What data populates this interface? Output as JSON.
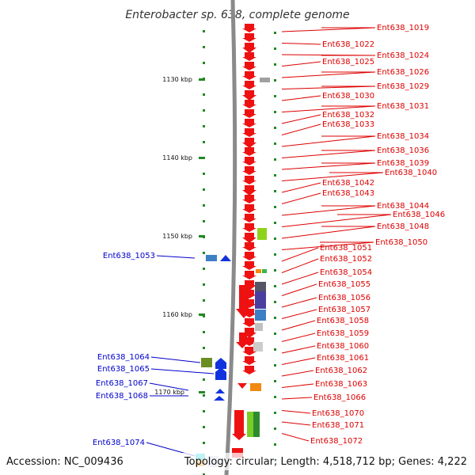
{
  "title": "Enterobacter sp. 638, complete genome",
  "footer": {
    "accession": "Accession: NC_009436",
    "topology": "Topology: circular; Length: 4,518,712 bp; Genes: 4,222"
  },
  "colors": {
    "forward_label": "#dd0000",
    "reverse_label": "#0000cc",
    "forward_gene": "#ee1111",
    "reverse_gene": "#1133dd",
    "backbone": "#888888",
    "tick": "#228822"
  },
  "ticks": [
    {
      "label": "1130 kbp",
      "pos": 1130
    },
    {
      "label": "1140 kbp",
      "pos": 1140
    },
    {
      "label": "1150 kbp",
      "pos": 1150
    },
    {
      "label": "1160 kbp",
      "pos": 1160
    },
    {
      "label": "1170 kbp",
      "pos": 1170
    }
  ],
  "forward_labels": [
    "Ent638_1019",
    "Ent638_1022",
    "Ent638_1024",
    "Ent638_1025",
    "Ent638_1026",
    "Ent638_1029",
    "Ent638_1030",
    "Ent638_1031",
    "Ent638_1032",
    "Ent638_1033",
    "Ent638_1034",
    "Ent638_1036",
    "Ent638_1039",
    "Ent638_1040",
    "Ent638_1042",
    "Ent638_1043",
    "Ent638_1044",
    "Ent638_1046",
    "Ent638_1048",
    "Ent638_1050",
    "Ent638_1051",
    "Ent638_1052",
    "Ent638_1054",
    "Ent638_1055",
    "Ent638_1056",
    "Ent638_1057",
    "Ent638_1058",
    "Ent638_1059",
    "Ent638_1060",
    "Ent638_1061",
    "Ent638_1062",
    "Ent638_1063",
    "Ent638_1066",
    "Ent638_1070",
    "Ent638_1071",
    "Ent638_1072"
  ],
  "reverse_labels": [
    "Ent638_1053",
    "Ent638_1064",
    "Ent638_1065",
    "Ent638_1067",
    "Ent638_1068",
    "Ent638_1074"
  ]
}
